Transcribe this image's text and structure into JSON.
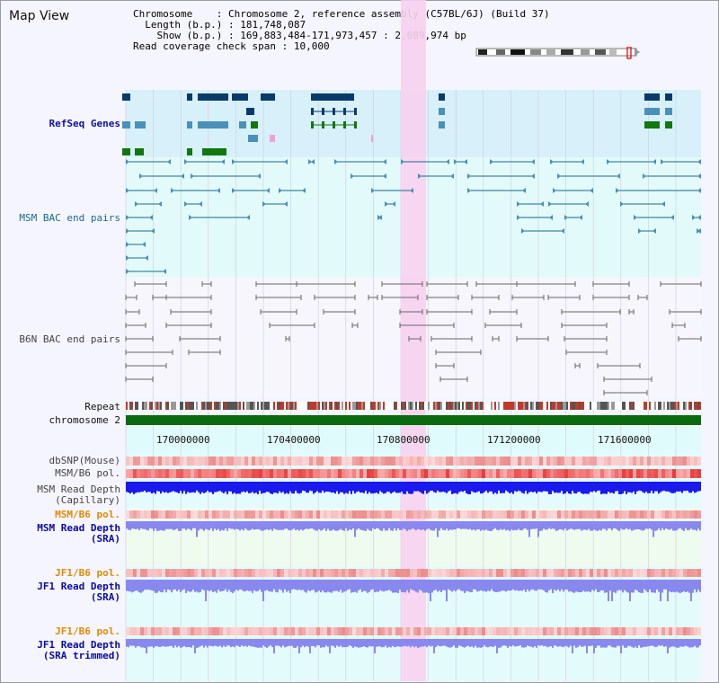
{
  "title": "Map View",
  "info": {
    "chromosome_key": "Chromosome",
    "chromosome_val": "Chromosome 2, reference assembly (C57BL/6J) (Build 37)",
    "length_key": "Length (b.p.)",
    "length_val": "181,748,087",
    "show_key": "Show (b.p.)",
    "show_val": "169,883,484-171,973,457 : 2,089,974 bp",
    "coverage_key": "Read coverage check span",
    "coverage_val": "10,000"
  },
  "tracks": {
    "refseq": "RefSeq Genes",
    "msm_bac": "MSM BAC end pairs",
    "b6n_bac": "B6N BAC end pairs",
    "repeat": "Repeat",
    "chromosome": "chromosome 2",
    "dbsnp": "dbSNP(Mouse)",
    "msm_b6_pol_1": "MSM/B6 pol.",
    "msm_depth_cap_1": "MSM Read Depth",
    "msm_depth_cap_2": "(Capillary)",
    "msm_b6_pol_2": "MSM/B6 pol.",
    "msm_depth_sra_1": "MSM Read Depth",
    "msm_depth_sra_2": "(SRA)",
    "jf1_b6_pol_1": "JF1/B6 pol.",
    "jf1_depth_sra_1": "JF1 Read Depth",
    "jf1_depth_sra_2": "(SRA)",
    "jf1_b6_pol_2": "JF1/B6 pol.",
    "jf1_depth_trim_1": "JF1 Read Depth",
    "jf1_depth_trim_2": "(SRA trimmed)"
  },
  "axis_ticks": [
    "170000000",
    "170400000",
    "170800000",
    "171200000",
    "171600000"
  ],
  "colors": {
    "refseq_dark": "#0a3a6a",
    "refseq_mid": "#4a90b8",
    "refseq_green": "#117711",
    "highlight": "#f7d2f0",
    "chromosome_bar": "#0a6a10",
    "depth_blue": "#1a1aee",
    "depth_sra": "#8888ee"
  }
}
